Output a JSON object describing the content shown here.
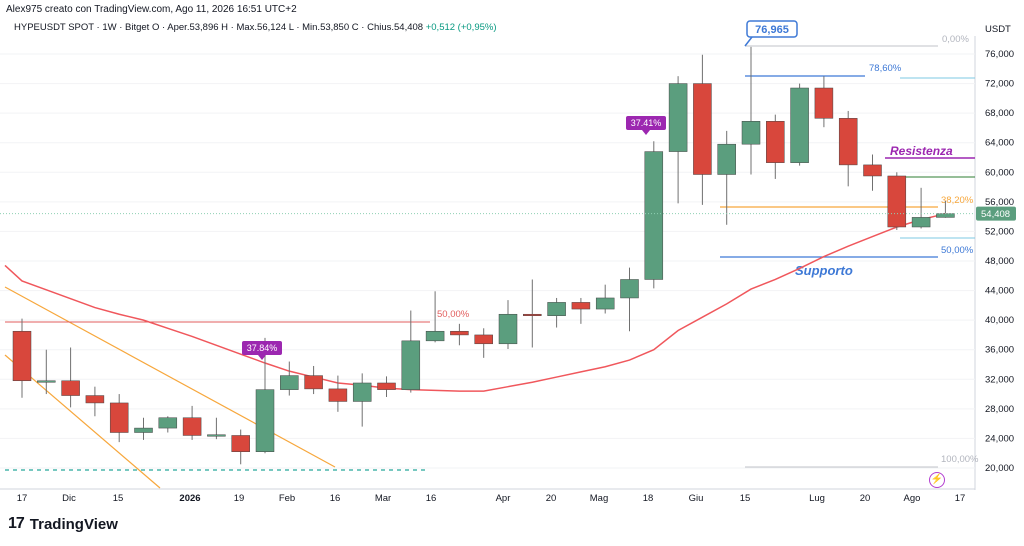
{
  "header": {
    "credit": "Alex975 creato con TradingView.com, Ago 11, 2026 16:51 UTC+2"
  },
  "info": {
    "symbol": "HYPEUSDT SPOT · 1W · Bitget",
    "open": "O · Aper.53,896",
    "high": "H · Max.56,124",
    "low": "L · Min.53,850",
    "close": "C · Chius.54,408",
    "change": "+0,512 (+0,95%)"
  },
  "brand": {
    "logo_text": "TradingView",
    "icon": "tradingview-logo-icon"
  },
  "colors": {
    "up": "#5b9e7e",
    "down": "#d8473c",
    "ma": "#f0575c",
    "channel": "#f7a73c",
    "fib": "#3e79d6",
    "resistance": "#9c27b0",
    "dashed": "#26a69a"
  },
  "chart_data": {
    "type": "candlestick",
    "currency": "USDT",
    "y_ticks": [
      "76,000",
      "72,000",
      "68,000",
      "64,000",
      "60,000",
      "56,000",
      "52,000",
      "48,000",
      "44,000",
      "40,000",
      "36,000",
      "32,000",
      "28,000",
      "24,000",
      "20,000"
    ],
    "ylim": [
      18,
      80
    ],
    "x_labels": [
      "17",
      "Dic",
      "15",
      "2026",
      "19",
      "Feb",
      "16",
      "Mar",
      "16",
      "Apr",
      "20",
      "Mag",
      "18",
      "Giu",
      "15",
      "Lug",
      "20",
      "Ago",
      "17"
    ],
    "last_price": "54,408",
    "candles": [
      {
        "o": 38.5,
        "h": 40.2,
        "l": 29.5,
        "c": 31.8
      },
      {
        "o": 31.8,
        "h": 36.0,
        "l": 30.0,
        "c": 31.8
      },
      {
        "o": 31.8,
        "h": 36.3,
        "l": 28.2,
        "c": 29.8
      },
      {
        "o": 29.8,
        "h": 31.0,
        "l": 27.0,
        "c": 28.8
      },
      {
        "o": 28.8,
        "h": 30.0,
        "l": 23.5,
        "c": 24.8
      },
      {
        "o": 24.8,
        "h": 26.8,
        "l": 23.8,
        "c": 25.4
      },
      {
        "o": 25.4,
        "h": 27.0,
        "l": 24.8,
        "c": 26.8
      },
      {
        "o": 26.8,
        "h": 28.4,
        "l": 23.8,
        "c": 24.4
      },
      {
        "o": 24.4,
        "h": 26.8,
        "l": 23.9,
        "c": 24.5
      },
      {
        "o": 24.4,
        "h": 25.2,
        "l": 20.5,
        "c": 22.2
      },
      {
        "o": 22.2,
        "h": 37.6,
        "l": 22.0,
        "c": 30.6
      },
      {
        "o": 30.6,
        "h": 34.4,
        "l": 29.8,
        "c": 32.5
      },
      {
        "o": 32.5,
        "h": 33.8,
        "l": 30.0,
        "c": 30.7
      },
      {
        "o": 30.7,
        "h": 32.5,
        "l": 27.6,
        "c": 29.0
      },
      {
        "o": 29.0,
        "h": 32.8,
        "l": 25.6,
        "c": 31.5
      },
      {
        "o": 31.5,
        "h": 32.4,
        "l": 29.6,
        "c": 30.6
      },
      {
        "o": 30.6,
        "h": 41.3,
        "l": 30.2,
        "c": 37.2
      },
      {
        "o": 37.2,
        "h": 43.9,
        "l": 37.0,
        "c": 38.5
      },
      {
        "o": 38.5,
        "h": 39.5,
        "l": 36.6,
        "c": 38.0
      },
      {
        "o": 38.0,
        "h": 38.9,
        "l": 34.9,
        "c": 36.8
      },
      {
        "o": 36.8,
        "h": 42.7,
        "l": 36.1,
        "c": 40.8
      },
      {
        "o": 40.8,
        "h": 45.5,
        "l": 36.3,
        "c": 40.6
      },
      {
        "o": 40.6,
        "h": 43.0,
        "l": 39.0,
        "c": 42.4
      },
      {
        "o": 42.4,
        "h": 43.0,
        "l": 39.5,
        "c": 41.5
      },
      {
        "o": 41.5,
        "h": 44.8,
        "l": 40.9,
        "c": 43.0
      },
      {
        "o": 43.0,
        "h": 47.1,
        "l": 38.5,
        "c": 45.5
      },
      {
        "o": 45.5,
        "h": 64.2,
        "l": 44.3,
        "c": 62.8
      },
      {
        "o": 62.8,
        "h": 73.0,
        "l": 55.8,
        "c": 72.0
      },
      {
        "o": 72.0,
        "h": 75.9,
        "l": 55.6,
        "c": 59.7
      },
      {
        "o": 59.7,
        "h": 65.6,
        "l": 52.9,
        "c": 63.8
      },
      {
        "o": 63.8,
        "h": 76.965,
        "l": 59.7,
        "c": 66.9
      },
      {
        "o": 66.9,
        "h": 67.8,
        "l": 59.1,
        "c": 61.3
      },
      {
        "o": 61.3,
        "h": 72.0,
        "l": 60.9,
        "c": 71.4
      },
      {
        "o": 71.4,
        "h": 73.0,
        "l": 66.1,
        "c": 67.3
      },
      {
        "o": 67.3,
        "h": 68.3,
        "l": 58.1,
        "c": 61.0
      },
      {
        "o": 61.0,
        "h": 62.4,
        "l": 57.5,
        "c": 59.5
      },
      {
        "o": 59.5,
        "h": 60.0,
        "l": 52.2,
        "c": 52.6
      },
      {
        "o": 52.6,
        "h": 57.9,
        "l": 52.4,
        "c": 53.9
      },
      {
        "o": 53.896,
        "h": 56.124,
        "l": 53.85,
        "c": 54.408
      }
    ],
    "moving_average": [
      45.3,
      44.1,
      42.9,
      41.7,
      40.8,
      40.0,
      38.9,
      37.8,
      36.6,
      35.4,
      34.2,
      33.1,
      32.3,
      31.5,
      31.2,
      30.8,
      30.6,
      30.5,
      30.4,
      30.4,
      31.0,
      31.6,
      32.3,
      33.0,
      33.7,
      34.6,
      36.0,
      38.6,
      40.4,
      42.2,
      44.2,
      45.5,
      47.0,
      48.6,
      50.0,
      51.3,
      52.6,
      53.6,
      54.4
    ],
    "annotations": {
      "ath_badge": "76,965",
      "fib_0": "0,00%",
      "fib_786": "78,60%",
      "fib_382": "38,20%",
      "fib_500_right": "50,00%",
      "fib_100": "100,00%",
      "fib_500_left": "50,00%",
      "badge_a": "37.84%",
      "badge_b": "37.41%",
      "resistance_label": "Resistenza",
      "support_label": "Supporto"
    }
  }
}
